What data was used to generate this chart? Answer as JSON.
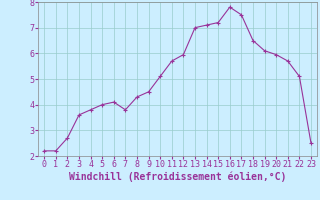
{
  "x": [
    0,
    1,
    2,
    3,
    4,
    5,
    6,
    7,
    8,
    9,
    10,
    11,
    12,
    13,
    14,
    15,
    16,
    17,
    18,
    19,
    20,
    21,
    22,
    23
  ],
  "y": [
    2.2,
    2.2,
    2.7,
    3.6,
    3.8,
    4.0,
    4.1,
    3.8,
    4.3,
    4.5,
    5.1,
    5.7,
    5.95,
    7.0,
    7.1,
    7.2,
    7.8,
    7.5,
    6.5,
    6.1,
    5.95,
    5.7,
    5.1,
    2.5
  ],
  "line_color": "#993399",
  "marker": "+",
  "marker_size": 3,
  "background_color": "#cceeff",
  "grid_color": "#99cccc",
  "xlabel": "Windchill (Refroidissement éolien,°C)",
  "xlabel_fontsize": 7,
  "xlabel_color": "#993399",
  "tick_color": "#993399",
  "tick_fontsize": 6,
  "ylim": [
    2,
    8
  ],
  "xlim": [
    -0.5,
    23.5
  ],
  "yticks": [
    2,
    3,
    4,
    5,
    6,
    7,
    8
  ],
  "xticks": [
    0,
    1,
    2,
    3,
    4,
    5,
    6,
    7,
    8,
    9,
    10,
    11,
    12,
    13,
    14,
    15,
    16,
    17,
    18,
    19,
    20,
    21,
    22,
    23
  ]
}
